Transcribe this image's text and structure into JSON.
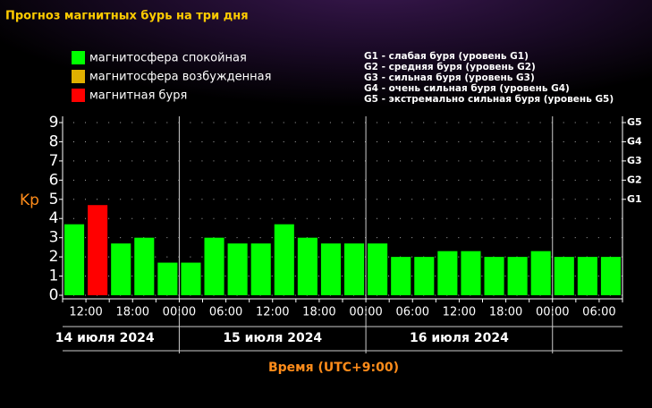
{
  "chart_data": {
    "type": "bar",
    "title": "Прогноз магнитных бурь на три дня",
    "legend": [
      {
        "name": "магнитосфера спокойная",
        "color": "#00ff00"
      },
      {
        "name": "магнитосфера возбужденная",
        "color": "#e0b000"
      },
      {
        "name": "магнитная буря",
        "color": "#ff0000"
      }
    ],
    "storm_levels": [
      "G1 - слабая буря (уровень G1)",
      "G2 - средняя буря (уровень G2)",
      "G3 - сильная буря (уровень G3)",
      "G4 - очень сильная буря (уровень G4)",
      "G5 - экстремально сильная буря (уровень G5)"
    ],
    "ylabel": "Kp",
    "xlabel": "Время (UTC+9:00)",
    "categories": [
      null,
      null,
      null,
      null,
      null,
      null,
      null,
      null,
      null,
      null,
      null,
      null,
      null,
      null,
      null,
      null,
      null,
      null,
      null,
      null,
      null,
      null,
      null,
      null
    ],
    "values": [
      3.7,
      4.7,
      2.7,
      3.0,
      1.7,
      1.7,
      3.0,
      2.7,
      2.7,
      3.7,
      3.0,
      2.7,
      2.7,
      2.7,
      2.0,
      2.0,
      2.3,
      2.3,
      2.0,
      2.0,
      2.3,
      2.0,
      2.0,
      2.0
    ],
    "colors": [
      "#00ff00",
      "#ff0000",
      "#00ff00",
      "#00ff00",
      "#00ff00",
      "#00ff00",
      "#00ff00",
      "#00ff00",
      "#00ff00",
      "#00ff00",
      "#00ff00",
      "#00ff00",
      "#00ff00",
      "#00ff00",
      "#00ff00",
      "#00ff00",
      "#00ff00",
      "#00ff00",
      "#00ff00",
      "#00ff00",
      "#00ff00",
      "#00ff00",
      "#00ff00",
      "#00ff00"
    ],
    "time_labels": [
      "12:00",
      "18:00",
      "00:00",
      "06:00",
      "12:00",
      "18:00",
      "00:00",
      "06:00",
      "12:00",
      "18:00",
      "00:00",
      "06:00"
    ],
    "days": [
      "14 июля 2024",
      "15 июля 2024",
      "16 июля 2024"
    ],
    "ylim": [
      0,
      9
    ],
    "yticks": [
      0,
      1,
      2,
      3,
      4,
      5,
      6,
      7,
      8,
      9
    ],
    "y2lim": [
      0,
      9
    ],
    "y2ticks": [
      {
        "value": 5,
        "label": "G1"
      },
      {
        "value": 6,
        "label": "G2"
      },
      {
        "value": 7,
        "label": "G3"
      },
      {
        "value": 8,
        "label": "G4"
      },
      {
        "value": 9,
        "label": "G5"
      }
    ],
    "grid": true
  }
}
